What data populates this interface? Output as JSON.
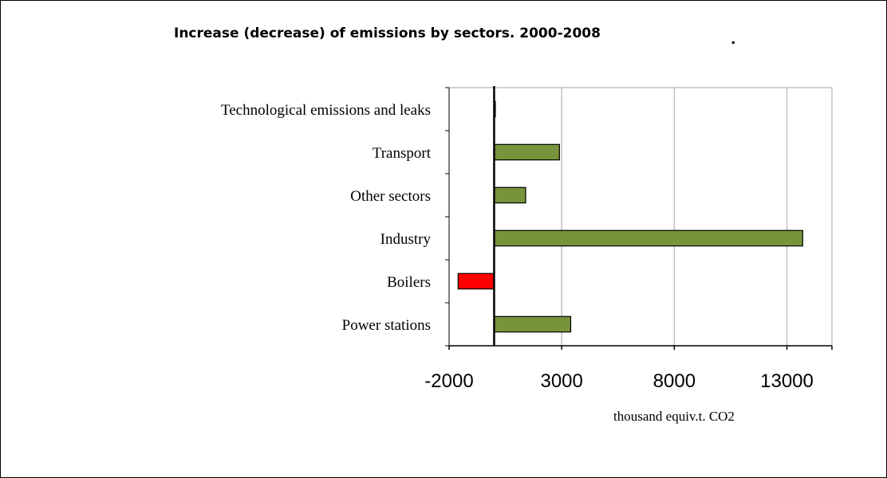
{
  "chart_data": {
    "type": "bar",
    "orientation": "horizontal",
    "title": "Increase (decrease) of emissions by sectors. 2000-2008",
    "title_suffix": ".",
    "xlabel": "thousand equiv.t. CO2",
    "ylabel": "",
    "categories": [
      "Technological emissions and leaks",
      "Transport",
      "Other sectors",
      "Industry",
      "Boilers",
      "Power stations"
    ],
    "values": [
      30,
      2900,
      1400,
      13700,
      -1600,
      3400
    ],
    "xlim": [
      -2000,
      15000
    ],
    "xticks": [
      -2000,
      3000,
      8000,
      13000
    ],
    "grid": true,
    "colors": {
      "positive": "#77933c",
      "negative": "#ff0000",
      "grid": "#c0c0c0"
    }
  }
}
